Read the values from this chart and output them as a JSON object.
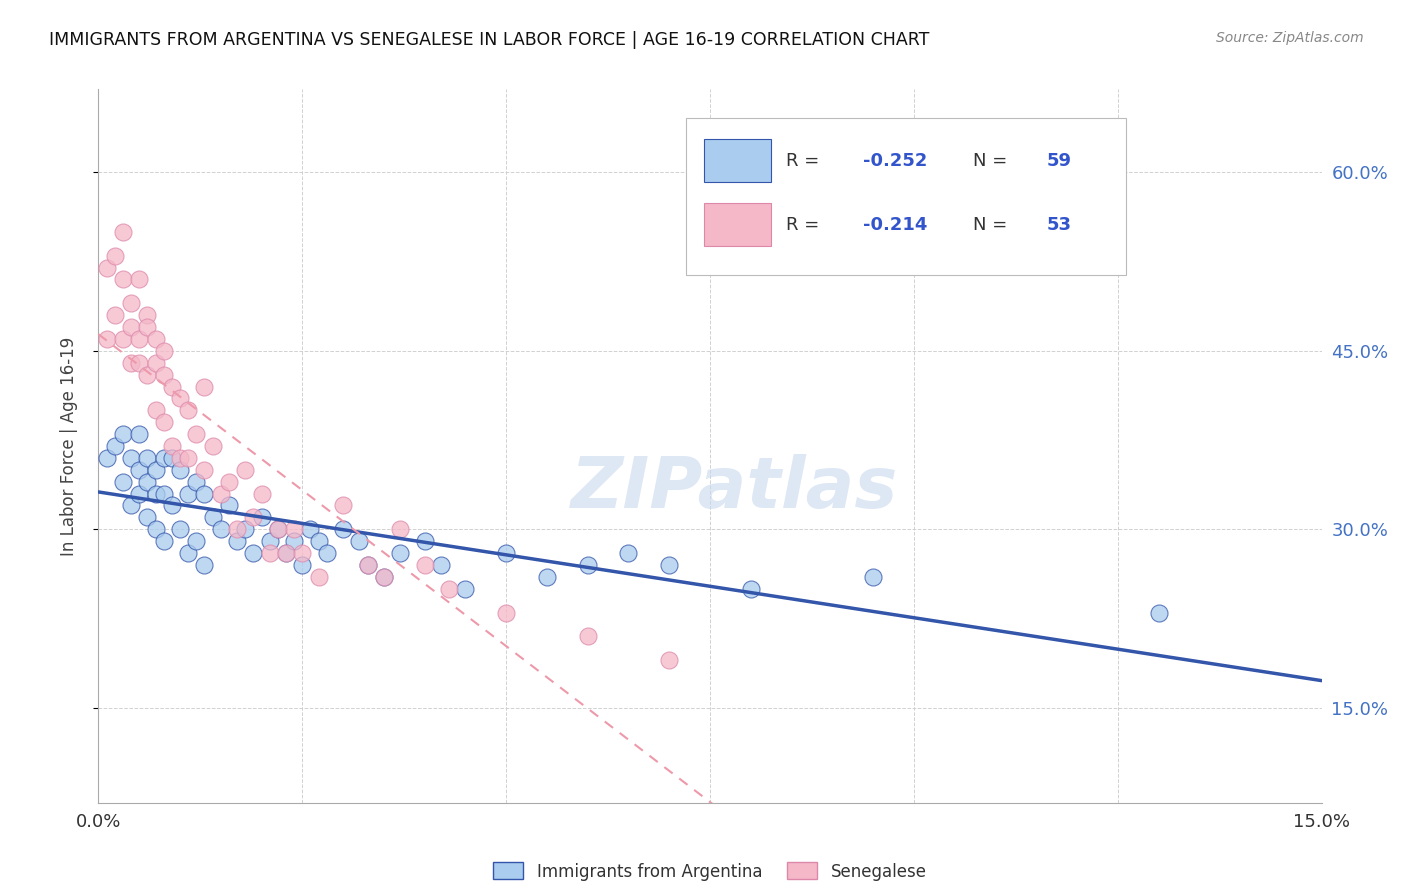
{
  "title": "IMMIGRANTS FROM ARGENTINA VS SENEGALESE IN LABOR FORCE | AGE 16-19 CORRELATION CHART",
  "source": "Source: ZipAtlas.com",
  "ylabel": "In Labor Force | Age 16-19",
  "ylabel_right_labels": [
    "15.0%",
    "30.0%",
    "45.0%",
    "60.0%"
  ],
  "ylabel_right_values": [
    0.15,
    0.3,
    0.45,
    0.6
  ],
  "xlim": [
    0.0,
    0.15
  ],
  "ylim": [
    0.07,
    0.67
  ],
  "color_argentina": "#aaccee",
  "color_senegal": "#f4b8c8",
  "line_color_argentina": "#3355aa",
  "line_color_senegal": "#ee99aa",
  "watermark": "ZIPatlas",
  "argentina_x": [
    0.001,
    0.002,
    0.003,
    0.003,
    0.004,
    0.004,
    0.005,
    0.005,
    0.005,
    0.006,
    0.006,
    0.006,
    0.007,
    0.007,
    0.007,
    0.008,
    0.008,
    0.008,
    0.009,
    0.009,
    0.01,
    0.01,
    0.011,
    0.011,
    0.012,
    0.012,
    0.013,
    0.013,
    0.014,
    0.015,
    0.016,
    0.017,
    0.018,
    0.019,
    0.02,
    0.021,
    0.022,
    0.023,
    0.024,
    0.025,
    0.026,
    0.027,
    0.028,
    0.03,
    0.032,
    0.033,
    0.035,
    0.037,
    0.04,
    0.042,
    0.045,
    0.05,
    0.055,
    0.06,
    0.065,
    0.07,
    0.08,
    0.095,
    0.13
  ],
  "argentina_y": [
    0.36,
    0.37,
    0.38,
    0.34,
    0.36,
    0.32,
    0.38,
    0.35,
    0.33,
    0.36,
    0.34,
    0.31,
    0.35,
    0.33,
    0.3,
    0.36,
    0.33,
    0.29,
    0.36,
    0.32,
    0.35,
    0.3,
    0.33,
    0.28,
    0.34,
    0.29,
    0.33,
    0.27,
    0.31,
    0.3,
    0.32,
    0.29,
    0.3,
    0.28,
    0.31,
    0.29,
    0.3,
    0.28,
    0.29,
    0.27,
    0.3,
    0.29,
    0.28,
    0.3,
    0.29,
    0.27,
    0.26,
    0.28,
    0.29,
    0.27,
    0.25,
    0.28,
    0.26,
    0.27,
    0.28,
    0.27,
    0.25,
    0.26,
    0.23
  ],
  "senegal_x": [
    0.001,
    0.001,
    0.002,
    0.002,
    0.003,
    0.003,
    0.003,
    0.004,
    0.004,
    0.004,
    0.005,
    0.005,
    0.005,
    0.006,
    0.006,
    0.006,
    0.007,
    0.007,
    0.007,
    0.008,
    0.008,
    0.008,
    0.009,
    0.009,
    0.01,
    0.01,
    0.011,
    0.011,
    0.012,
    0.013,
    0.013,
    0.014,
    0.015,
    0.016,
    0.017,
    0.018,
    0.019,
    0.02,
    0.021,
    0.022,
    0.023,
    0.024,
    0.025,
    0.027,
    0.03,
    0.033,
    0.035,
    0.037,
    0.04,
    0.043,
    0.05,
    0.06,
    0.07
  ],
  "senegal_y": [
    0.46,
    0.52,
    0.48,
    0.53,
    0.46,
    0.51,
    0.55,
    0.47,
    0.44,
    0.49,
    0.46,
    0.51,
    0.44,
    0.48,
    0.43,
    0.47,
    0.44,
    0.4,
    0.46,
    0.43,
    0.39,
    0.45,
    0.42,
    0.37,
    0.41,
    0.36,
    0.4,
    0.36,
    0.38,
    0.42,
    0.35,
    0.37,
    0.33,
    0.34,
    0.3,
    0.35,
    0.31,
    0.33,
    0.28,
    0.3,
    0.28,
    0.3,
    0.28,
    0.26,
    0.32,
    0.27,
    0.26,
    0.3,
    0.27,
    0.25,
    0.23,
    0.21,
    0.19
  ],
  "grid_color": "#cccccc",
  "background_color": "#ffffff"
}
